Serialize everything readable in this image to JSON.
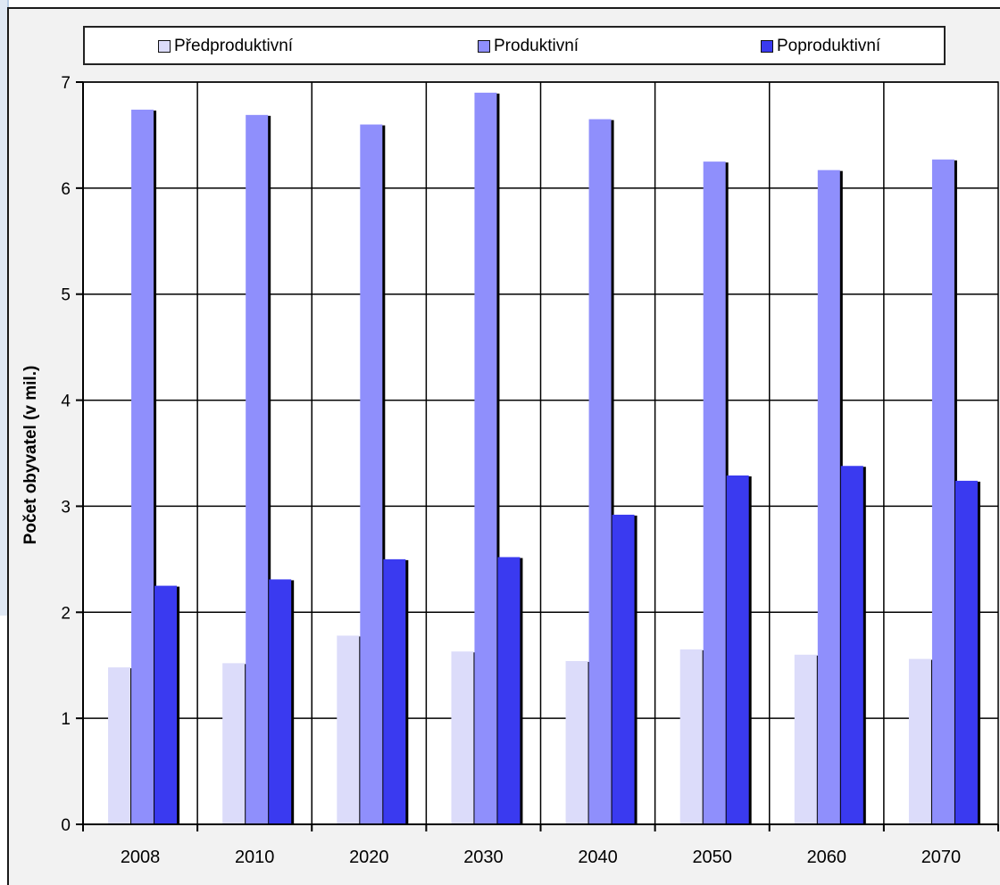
{
  "colors": {
    "frame_background": "#f2f2f2",
    "plot_background": "#ffffff",
    "side_panel": "#dfe8f4"
  },
  "chart_data": {
    "type": "bar",
    "title": "",
    "xlabel": "",
    "ylabel": "Počet obyvatel (v mil.)",
    "ylim": [
      0,
      7
    ],
    "yticks": [
      0,
      1,
      2,
      3,
      4,
      5,
      6,
      7
    ],
    "grid": true,
    "legend_position": "top",
    "categories": [
      "2008",
      "2010",
      "2020",
      "2030",
      "2040",
      "2050",
      "2060",
      "2070"
    ],
    "series": [
      {
        "name": "Předproduktivní",
        "color": "#dcdcfa",
        "values": [
          1.48,
          1.52,
          1.78,
          1.63,
          1.54,
          1.65,
          1.6,
          1.56
        ]
      },
      {
        "name": "Produktivní",
        "color": "#8f8ffc",
        "values": [
          6.74,
          6.69,
          6.6,
          6.9,
          6.65,
          6.25,
          6.17,
          6.27
        ]
      },
      {
        "name": "Poproduktivní",
        "color": "#3a3af0",
        "values": [
          2.25,
          2.31,
          2.5,
          2.52,
          2.92,
          3.29,
          3.38,
          3.24
        ]
      }
    ]
  }
}
